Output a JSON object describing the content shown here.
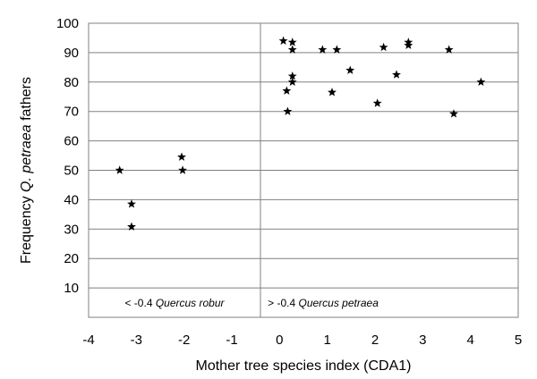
{
  "chart_data": {
    "type": "scatter",
    "title": "",
    "xlabel": "Mother tree species index (CDA1)",
    "ylabel": {
      "pre": "Frequency ",
      "italic": "Q. petraea",
      "post": " fathers"
    },
    "xlim": [
      -4,
      5
    ],
    "ylim": [
      0,
      100
    ],
    "xticks": [
      -4,
      -3,
      -2,
      -1,
      0,
      1,
      2,
      3,
      4,
      5
    ],
    "yticks": [
      10,
      20,
      30,
      40,
      50,
      60,
      70,
      80,
      90,
      100
    ],
    "grid": "horizontal",
    "threshold_x": -0.4,
    "annotations": [
      {
        "id": "robur",
        "prefix": "< -0.4 ",
        "italic": "Quercus robur"
      },
      {
        "id": "petraea",
        "prefix": "> -0.4 ",
        "italic": "Quercus petraea"
      }
    ],
    "series": [
      {
        "marker": "star",
        "color": "#000000",
        "points": [
          {
            "x": -3.35,
            "y": 50
          },
          {
            "x": -3.1,
            "y": 38.5
          },
          {
            "x": -3.1,
            "y": 30.8
          },
          {
            "x": -2.05,
            "y": 54.5
          },
          {
            "x": -2.03,
            "y": 50
          },
          {
            "x": 0.08,
            "y": 94
          },
          {
            "x": 0.15,
            "y": 77
          },
          {
            "x": 0.17,
            "y": 70
          },
          {
            "x": 0.27,
            "y": 93.5
          },
          {
            "x": 0.27,
            "y": 91
          },
          {
            "x": 0.27,
            "y": 82
          },
          {
            "x": 0.27,
            "y": 80
          },
          {
            "x": 0.9,
            "y": 91
          },
          {
            "x": 1.1,
            "y": 76.5
          },
          {
            "x": 1.2,
            "y": 91
          },
          {
            "x": 1.48,
            "y": 84
          },
          {
            "x": 2.05,
            "y": 72.8
          },
          {
            "x": 2.18,
            "y": 91.8
          },
          {
            "x": 2.45,
            "y": 82.5
          },
          {
            "x": 2.7,
            "y": 93.5
          },
          {
            "x": 2.7,
            "y": 92.5
          },
          {
            "x": 3.55,
            "y": 91
          },
          {
            "x": 3.65,
            "y": 69.2
          },
          {
            "x": 4.22,
            "y": 80
          }
        ]
      }
    ]
  }
}
